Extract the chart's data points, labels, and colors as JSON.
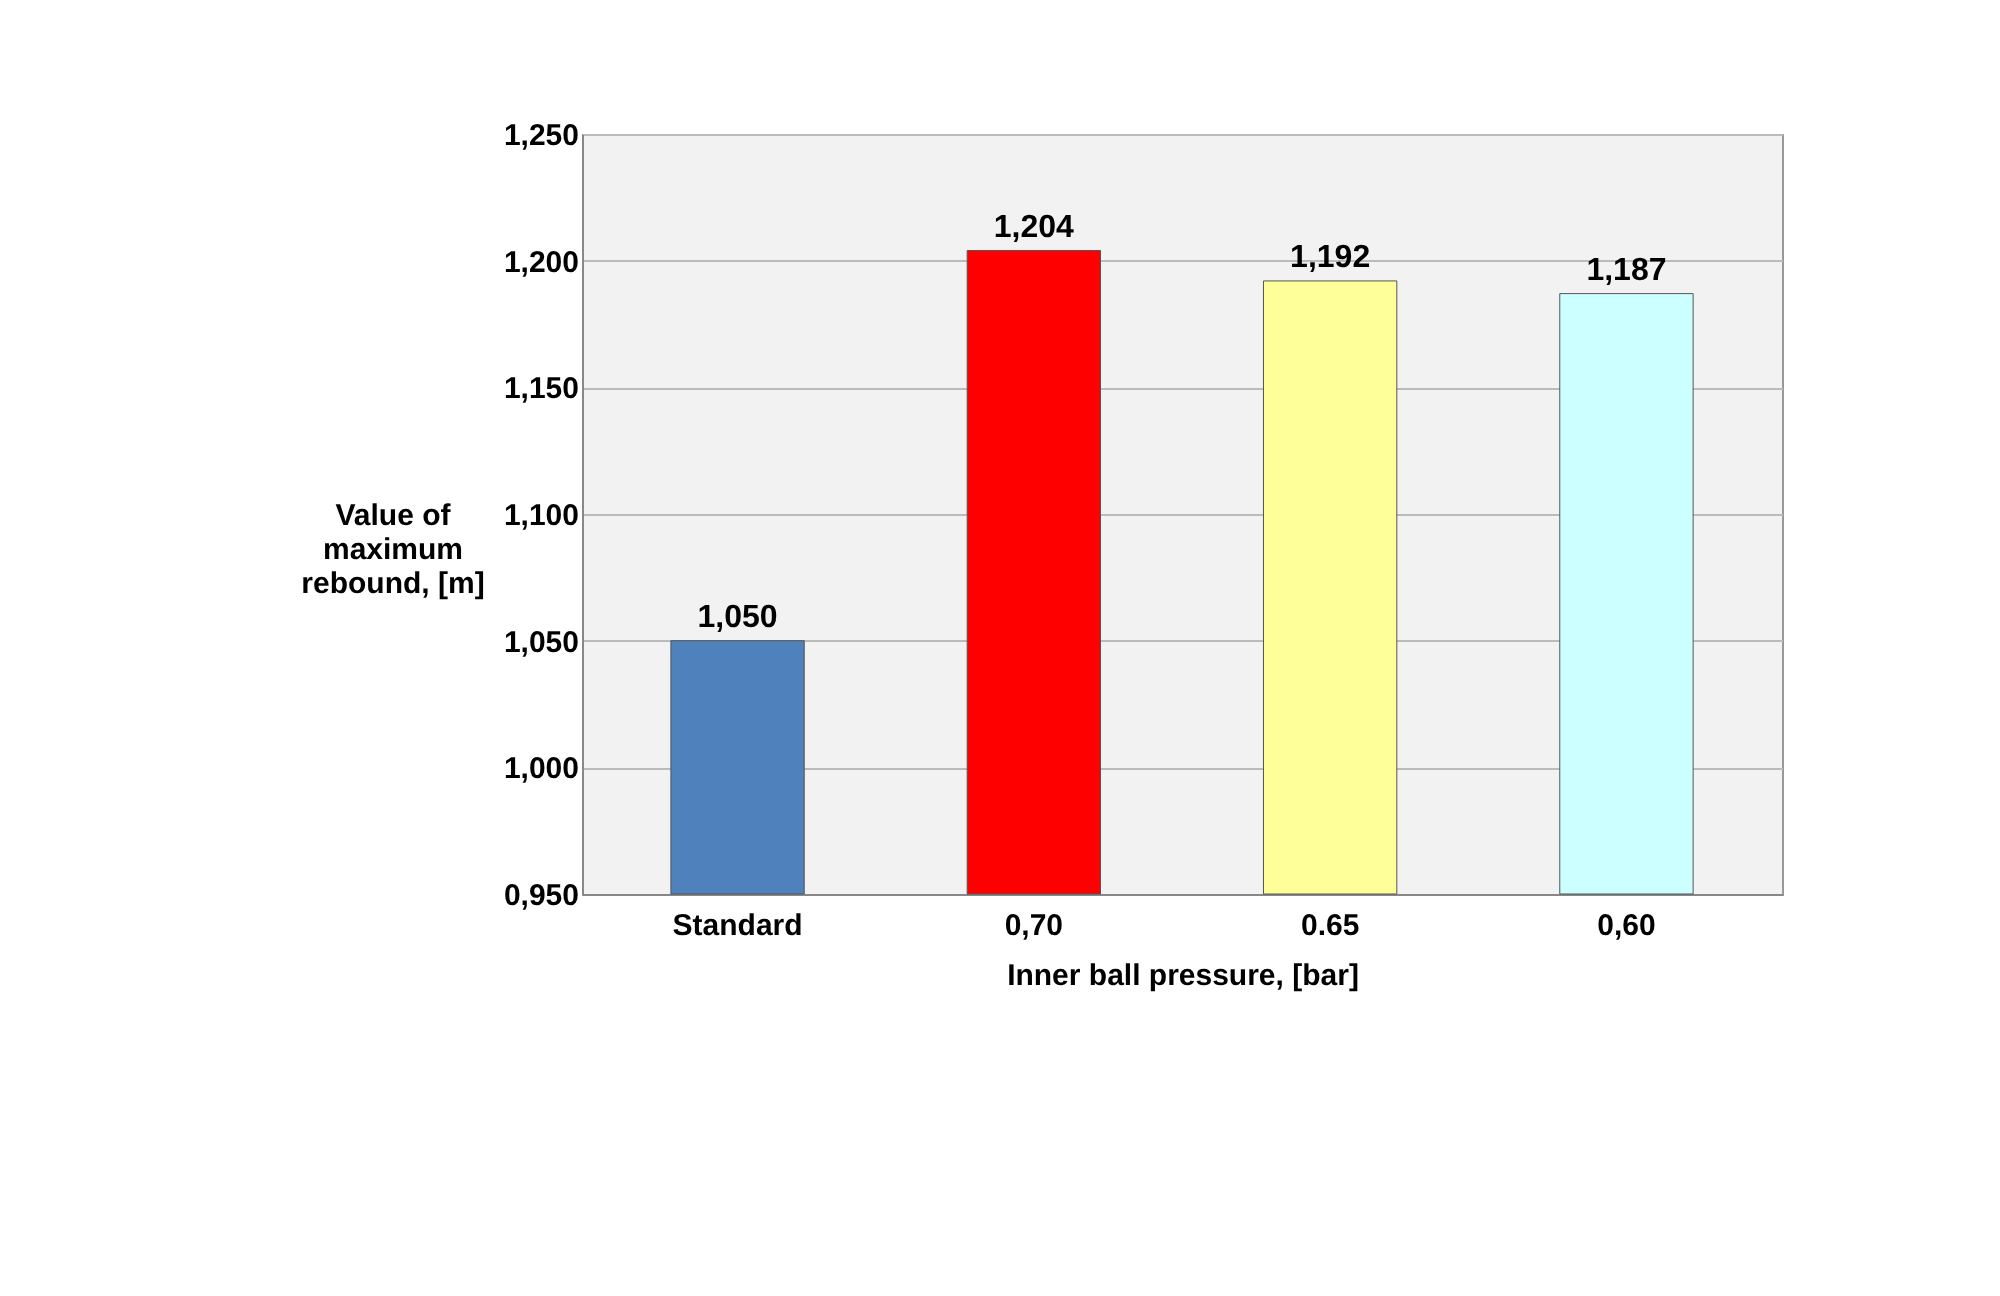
{
  "chart_data": {
    "type": "bar",
    "categories": [
      "Standard",
      "0,70",
      "0.65",
      "0,60"
    ],
    "values": [
      1.05,
      1.204,
      1.192,
      1.187
    ],
    "value_labels": [
      "1,050",
      "1,204",
      "1,192",
      "1,187"
    ],
    "legend": false,
    "colors": [
      "#4f81bd",
      "#ff0000",
      "#ffff99",
      "#ccffff"
    ],
    "xlabel": "Inner ball pressure, [bar]",
    "ylabel": "Value of maximum rebound, [m]",
    "ylim": [
      0.95,
      1.25
    ],
    "yticks": [
      {
        "value": 0.95,
        "label": "0,950"
      },
      {
        "value": 1.0,
        "label": "1,000"
      },
      {
        "value": 1.05,
        "label": "1,050"
      },
      {
        "value": 1.1,
        "label": "1,100"
      },
      {
        "value": 1.15,
        "label": "1,150"
      },
      {
        "value": 1.2,
        "label": "1,200"
      },
      {
        "value": 1.25,
        "label": "1,250"
      }
    ],
    "grid": "y"
  }
}
